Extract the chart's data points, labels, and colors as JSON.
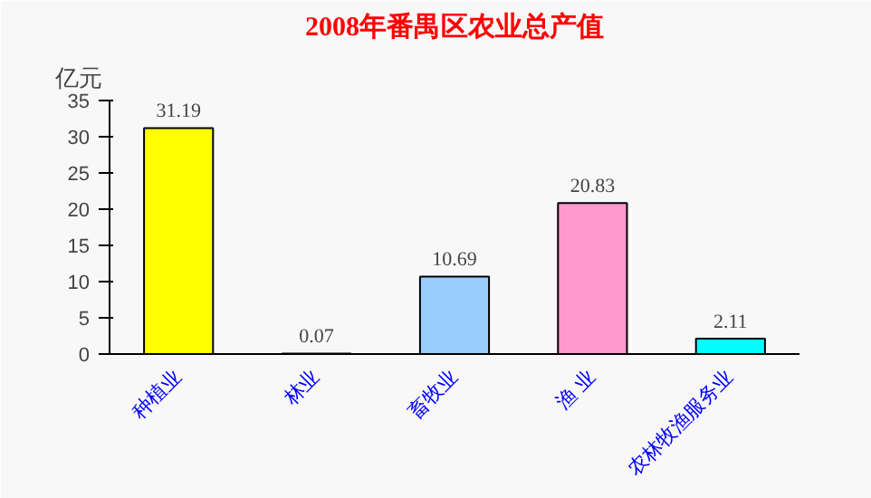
{
  "chart_data": {
    "type": "bar",
    "title": "2008年番禺区农业总产值",
    "ylabel": "亿元",
    "categories": [
      "种植业",
      "林业",
      "畜牧业",
      "渔 业",
      "农林牧渔服务业"
    ],
    "values": [
      31.19,
      0.07,
      10.69,
      20.83,
      2.11
    ],
    "colors": [
      "#ffff00",
      "#9999ff",
      "#99ccff",
      "#ff99cc",
      "#00ffff"
    ],
    "ylim": [
      0,
      35
    ],
    "yticks": [
      0,
      5,
      10,
      15,
      20,
      25,
      30,
      35
    ],
    "data_labels": true,
    "grid": false
  }
}
